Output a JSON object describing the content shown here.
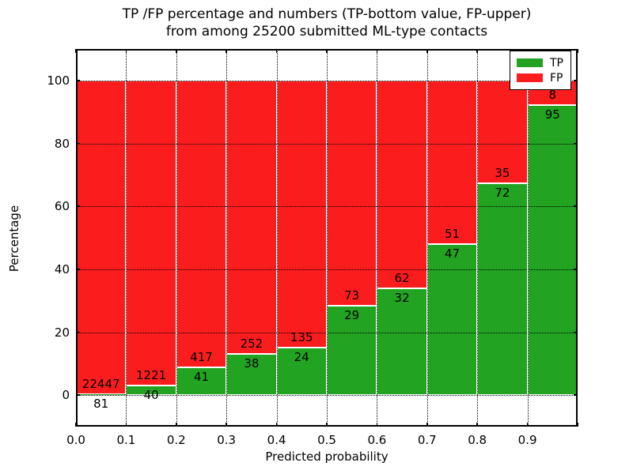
{
  "title": {
    "line1": "TP /FP percentage and numbers (TP-bottom value, FP-upper)",
    "line2": "from among 25200 submitted ML-type contacts"
  },
  "axes": {
    "xlabel": "Predicted probability",
    "ylabel": "Percentage",
    "x_tick_labels": [
      "0.0",
      "0.1",
      "0.2",
      "0.3",
      "0.4",
      "0.5",
      "0.6",
      "0.7",
      "0.8",
      "0.9"
    ],
    "y_tick_values": [
      0,
      20,
      40,
      60,
      80,
      100
    ],
    "xlim": [
      0.0,
      1.0
    ],
    "ylim": [
      -10,
      110
    ],
    "grid": "dotted black, x every 0.1, y every 20"
  },
  "legend": {
    "items": [
      {
        "label": "TP",
        "color": "#22a322"
      },
      {
        "label": "FP",
        "color": "#fb1d1d"
      }
    ]
  },
  "colors": {
    "tp_green": "#22a322",
    "fp_red": "#fb1d1d",
    "bar_edge": "#ffffff",
    "axis": "#000000"
  },
  "chart_data": {
    "type": "bar",
    "stacked": true,
    "normalized_to_percent": true,
    "title": "TP /FP percentage and numbers (TP-bottom value, FP-upper) from among 25200 submitted ML-type contacts",
    "xlabel": "Predicted probability",
    "ylabel": "Percentage",
    "total_contacts": 25200,
    "bin_start": [
      0.0,
      0.1,
      0.2,
      0.3,
      0.4,
      0.5,
      0.6,
      0.7,
      0.8,
      0.9
    ],
    "bin_width": 0.1,
    "series": [
      {
        "name": "TP",
        "color": "#22a322",
        "counts": [
          81,
          40,
          41,
          38,
          24,
          29,
          32,
          47,
          72,
          95
        ]
      },
      {
        "name": "FP",
        "color": "#fb1d1d",
        "counts": [
          22447,
          1221,
          417,
          252,
          135,
          73,
          62,
          51,
          35,
          8
        ]
      }
    ],
    "tp_percent": [
      0.36,
      3.17,
      8.95,
      13.1,
      15.09,
      28.43,
      34.04,
      47.96,
      67.29,
      92.23
    ],
    "ylim": [
      -10,
      110
    ],
    "xlim": [
      0.0,
      1.0
    ],
    "legend_position": "upper right"
  }
}
